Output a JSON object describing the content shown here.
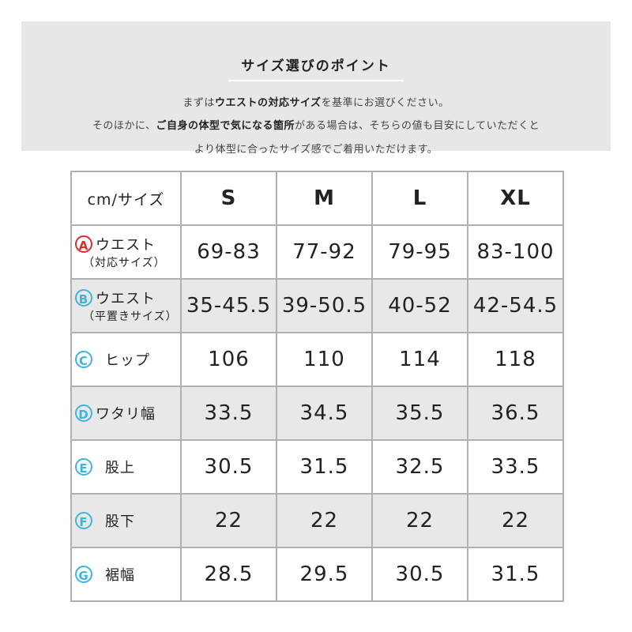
{
  "banner": {
    "title": "サイズ選びのポイント",
    "line1": [
      {
        "t": "まずは",
        "b": false
      },
      {
        "t": "ウエストの対応サイズ",
        "b": true
      },
      {
        "t": "を基準にお選びください。",
        "b": false
      }
    ],
    "line2": [
      {
        "t": "そのほかに、",
        "b": false
      },
      {
        "t": "ご自身の体型で気になる箇所",
        "b": true
      },
      {
        "t": "がある場合は、そちらの値も目安にしていただくと",
        "b": false
      }
    ],
    "line3": "より体型に合ったサイズ感でご着用いただけます。"
  },
  "table": {
    "corner": "cm/サイズ",
    "sizes": [
      "S",
      "M",
      "L",
      "XL"
    ],
    "rows": [
      {
        "letter": "A",
        "label": "ウエスト",
        "sub": "（対応サイズ）",
        "values": [
          "69-83",
          "77-92",
          "79-95",
          "83-100"
        ],
        "color": "#e32b2b"
      },
      {
        "letter": "B",
        "label": "ウエスト",
        "sub": "（平置きサイズ）",
        "values": [
          "35-45.5",
          "39-50.5",
          "40-52",
          "42-54.5"
        ],
        "color": "#3fb4de"
      },
      {
        "letter": "C",
        "label": "ヒップ",
        "values": [
          "106",
          "110",
          "114",
          "118"
        ],
        "color": "#3fb4de"
      },
      {
        "letter": "D",
        "label": "ワタリ幅",
        "values": [
          "33.5",
          "34.5",
          "35.5",
          "36.5"
        ],
        "color": "#3fb4de"
      },
      {
        "letter": "E",
        "label": "股上",
        "values": [
          "30.5",
          "31.5",
          "32.5",
          "33.5"
        ],
        "color": "#3fb4de"
      },
      {
        "letter": "F",
        "label": "股下",
        "values": [
          "22",
          "22",
          "22",
          "22"
        ],
        "color": "#3fb4de"
      },
      {
        "letter": "G",
        "label": "裾幅",
        "values": [
          "28.5",
          "29.5",
          "30.5",
          "31.5"
        ],
        "color": "#3fb4de"
      }
    ]
  }
}
